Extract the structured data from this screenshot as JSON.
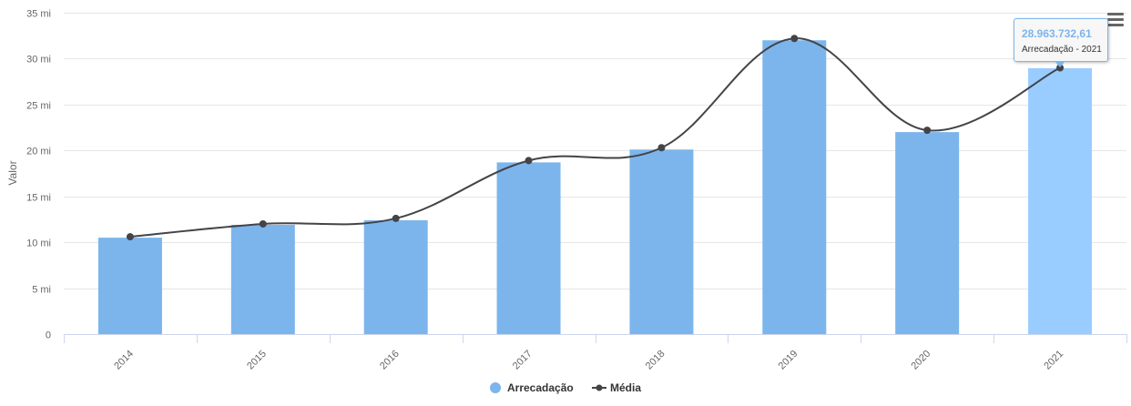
{
  "chart_data": {
    "type": "bar",
    "title": "",
    "xlabel": "",
    "ylabel": "Valor",
    "ylim": [
      0,
      35000000
    ],
    "yticks": [
      {
        "value": 0,
        "label": "0"
      },
      {
        "value": 5000000,
        "label": "5 mi"
      },
      {
        "value": 10000000,
        "label": "10 mi"
      },
      {
        "value": 15000000,
        "label": "15 mi"
      },
      {
        "value": 20000000,
        "label": "20 mi"
      },
      {
        "value": 25000000,
        "label": "25 mi"
      },
      {
        "value": 30000000,
        "label": "30 mi"
      },
      {
        "value": 35000000,
        "label": "35 mi"
      }
    ],
    "categories": [
      "2014",
      "2015",
      "2016",
      "2017",
      "2018",
      "2019",
      "2020",
      "2021"
    ],
    "series": [
      {
        "name": "Arrecadação",
        "type": "bar",
        "color": "#7cb5ec",
        "highlight_color": "#99ccff",
        "values": [
          10500000,
          11900000,
          12400000,
          18700000,
          20100000,
          32000000,
          22000000,
          28963732.61
        ]
      },
      {
        "name": "Média",
        "type": "line",
        "color": "#434348",
        "values": [
          10600000,
          12000000,
          12600000,
          18900000,
          20300000,
          32200000,
          22200000,
          29000000
        ]
      }
    ],
    "grid": true,
    "legend": "bottom-center",
    "highlighted_index": 7
  },
  "tooltip": {
    "value": "28.963.732,61",
    "label": "Arrecadação - 2021"
  }
}
